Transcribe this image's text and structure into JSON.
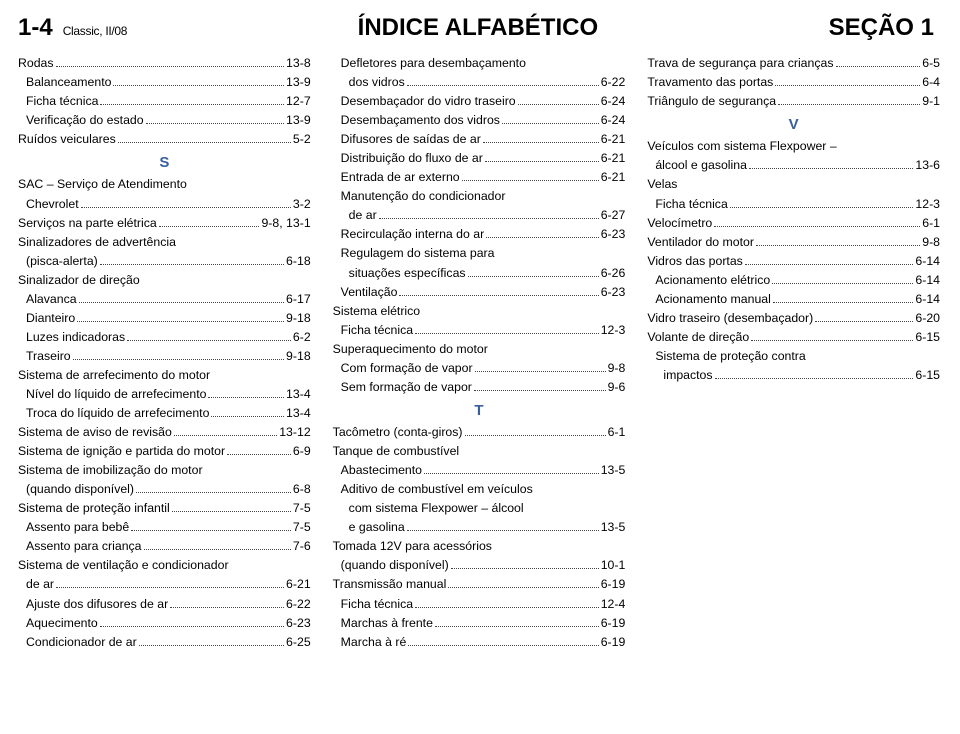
{
  "header": {
    "page_number": "1-4",
    "edition": "Classic, II/08",
    "title": "ÍNDICE ALFABÉTICO",
    "section": "SEÇÃO 1"
  },
  "accent_color": "#385f9e",
  "columns": [
    [
      {
        "type": "item",
        "label": "Rodas",
        "page": "13-8"
      },
      {
        "type": "item",
        "label": "Balanceamento",
        "page": "13-9",
        "indent": 1
      },
      {
        "type": "item",
        "label": "Ficha técnica",
        "page": "12-7",
        "indent": 1
      },
      {
        "type": "item",
        "label": "Verificação do estado",
        "page": "13-9",
        "indent": 1
      },
      {
        "type": "item",
        "label": "Ruídos veiculares",
        "page": "5-2"
      },
      {
        "type": "letter",
        "label": "S"
      },
      {
        "type": "group",
        "label": "SAC – Serviço de Atendimento"
      },
      {
        "type": "item",
        "label": "Chevrolet",
        "page": "3-2",
        "indent": 1
      },
      {
        "type": "item",
        "label": "Serviços na parte elétrica",
        "page": "9-8, 13-1"
      },
      {
        "type": "group",
        "label": "Sinalizadores de advertência"
      },
      {
        "type": "item",
        "label": "(pisca-alerta)",
        "page": "6-18",
        "indent": 1
      },
      {
        "type": "group",
        "label": "Sinalizador de direção"
      },
      {
        "type": "item",
        "label": "Alavanca",
        "page": "6-17",
        "indent": 1
      },
      {
        "type": "item",
        "label": "Dianteiro",
        "page": "9-18",
        "indent": 1
      },
      {
        "type": "item",
        "label": "Luzes indicadoras",
        "page": "6-2",
        "indent": 1
      },
      {
        "type": "item",
        "label": "Traseiro",
        "page": "9-18",
        "indent": 1
      },
      {
        "type": "group",
        "label": "Sistema de arrefecimento do motor"
      },
      {
        "type": "item",
        "label": "Nível do líquido de arrefecimento",
        "page": "13-4",
        "indent": 1
      },
      {
        "type": "item",
        "label": "Troca do líquido de arrefecimento",
        "page": "13-4",
        "indent": 1
      },
      {
        "type": "item",
        "label": "Sistema de aviso de revisão",
        "page": "13-12"
      },
      {
        "type": "item",
        "label": "Sistema de ignição e partida do motor",
        "page": "6-9"
      },
      {
        "type": "group",
        "label": "Sistema de imobilização do motor"
      },
      {
        "type": "item",
        "label": "(quando disponível)",
        "page": "6-8",
        "indent": 1
      },
      {
        "type": "item",
        "label": "Sistema de proteção infantil",
        "page": "7-5"
      },
      {
        "type": "item",
        "label": "Assento para bebê",
        "page": "7-5",
        "indent": 1
      },
      {
        "type": "item",
        "label": "Assento para criança",
        "page": "7-6",
        "indent": 1
      },
      {
        "type": "group",
        "label": "Sistema de ventilação e condicionador"
      },
      {
        "type": "item",
        "label": "de ar",
        "page": "6-21",
        "indent": 1
      },
      {
        "type": "item",
        "label": "Ajuste dos difusores de ar",
        "page": "6-22",
        "indent": 1
      },
      {
        "type": "item",
        "label": "Aquecimento",
        "page": "6-23",
        "indent": 1
      },
      {
        "type": "item",
        "label": "Condicionador de ar",
        "page": "6-25",
        "indent": 1
      }
    ],
    [
      {
        "type": "group",
        "label": "Defletores para desembaçamento",
        "indent": 1
      },
      {
        "type": "item",
        "label": "dos vidros",
        "page": "6-22",
        "indent": 2
      },
      {
        "type": "item",
        "label": "Desembaçador do vidro traseiro",
        "page": "6-24",
        "indent": 1
      },
      {
        "type": "item",
        "label": "Desembaçamento dos vidros",
        "page": "6-24",
        "indent": 1
      },
      {
        "type": "item",
        "label": "Difusores de saídas de ar",
        "page": "6-21",
        "indent": 1
      },
      {
        "type": "item",
        "label": "Distribuição do fluxo de ar",
        "page": "6-21",
        "indent": 1
      },
      {
        "type": "item",
        "label": "Entrada de ar externo",
        "page": "6-21",
        "indent": 1
      },
      {
        "type": "group",
        "label": "Manutenção do condicionador",
        "indent": 1
      },
      {
        "type": "item",
        "label": "de ar",
        "page": "6-27",
        "indent": 2
      },
      {
        "type": "item",
        "label": "Recirculação interna do ar",
        "page": "6-23",
        "indent": 1
      },
      {
        "type": "group",
        "label": "Regulagem do sistema para",
        "indent": 1
      },
      {
        "type": "item",
        "label": "situações específicas",
        "page": "6-26",
        "indent": 2
      },
      {
        "type": "item",
        "label": "Ventilação",
        "page": "6-23",
        "indent": 1
      },
      {
        "type": "group",
        "label": "Sistema elétrico"
      },
      {
        "type": "item",
        "label": "Ficha técnica",
        "page": "12-3",
        "indent": 1
      },
      {
        "type": "group",
        "label": "Superaquecimento do motor"
      },
      {
        "type": "item",
        "label": "Com formação de vapor",
        "page": "9-8",
        "indent": 1
      },
      {
        "type": "item",
        "label": "Sem formação de vapor",
        "page": "9-6",
        "indent": 1
      },
      {
        "type": "letter",
        "label": "T"
      },
      {
        "type": "item",
        "label": "Tacômetro (conta-giros)",
        "page": "6-1"
      },
      {
        "type": "group",
        "label": "Tanque de combustível"
      },
      {
        "type": "item",
        "label": "Abastecimento",
        "page": "13-5",
        "indent": 1
      },
      {
        "type": "group",
        "label": "Aditivo de combustível em veículos",
        "indent": 1
      },
      {
        "type": "group",
        "label": "com sistema Flexpower – álcool",
        "indent": 2
      },
      {
        "type": "item",
        "label": "e gasolina",
        "page": "13-5",
        "indent": 2
      },
      {
        "type": "group",
        "label": "Tomada 12V para acessórios"
      },
      {
        "type": "item",
        "label": "(quando disponível)",
        "page": "10-1",
        "indent": 1
      },
      {
        "type": "item",
        "label": "Transmissão manual",
        "page": "6-19"
      },
      {
        "type": "item",
        "label": "Ficha técnica",
        "page": "12-4",
        "indent": 1
      },
      {
        "type": "item",
        "label": "Marchas à frente",
        "page": "6-19",
        "indent": 1
      },
      {
        "type": "item",
        "label": "Marcha à ré",
        "page": "6-19",
        "indent": 1
      }
    ],
    [
      {
        "type": "item",
        "label": "Trava de segurança para crianças",
        "page": "6-5"
      },
      {
        "type": "item",
        "label": "Travamento das portas",
        "page": "6-4"
      },
      {
        "type": "item",
        "label": "Triângulo de segurança",
        "page": "9-1"
      },
      {
        "type": "letter",
        "label": "V"
      },
      {
        "type": "group",
        "label": "Veículos com sistema Flexpower –"
      },
      {
        "type": "item",
        "label": "álcool e gasolina",
        "page": "13-6",
        "indent": 1
      },
      {
        "type": "group",
        "label": "Velas"
      },
      {
        "type": "item",
        "label": "Ficha técnica",
        "page": "12-3",
        "indent": 1
      },
      {
        "type": "item",
        "label": "Velocímetro",
        "page": "6-1"
      },
      {
        "type": "item",
        "label": "Ventilador do motor",
        "page": "9-8"
      },
      {
        "type": "item",
        "label": "Vidros das portas",
        "page": "6-14"
      },
      {
        "type": "item",
        "label": "Acionamento elétrico",
        "page": "6-14",
        "indent": 1
      },
      {
        "type": "item",
        "label": "Acionamento manual",
        "page": "6-14",
        "indent": 1
      },
      {
        "type": "item",
        "label": "Vidro traseiro (desembaçador)",
        "page": "6-20"
      },
      {
        "type": "item",
        "label": "Volante de direção",
        "page": "6-15"
      },
      {
        "type": "group",
        "label": "Sistema de proteção contra",
        "indent": 1
      },
      {
        "type": "item",
        "label": "impactos",
        "page": "6-15",
        "indent": 2
      }
    ]
  ]
}
